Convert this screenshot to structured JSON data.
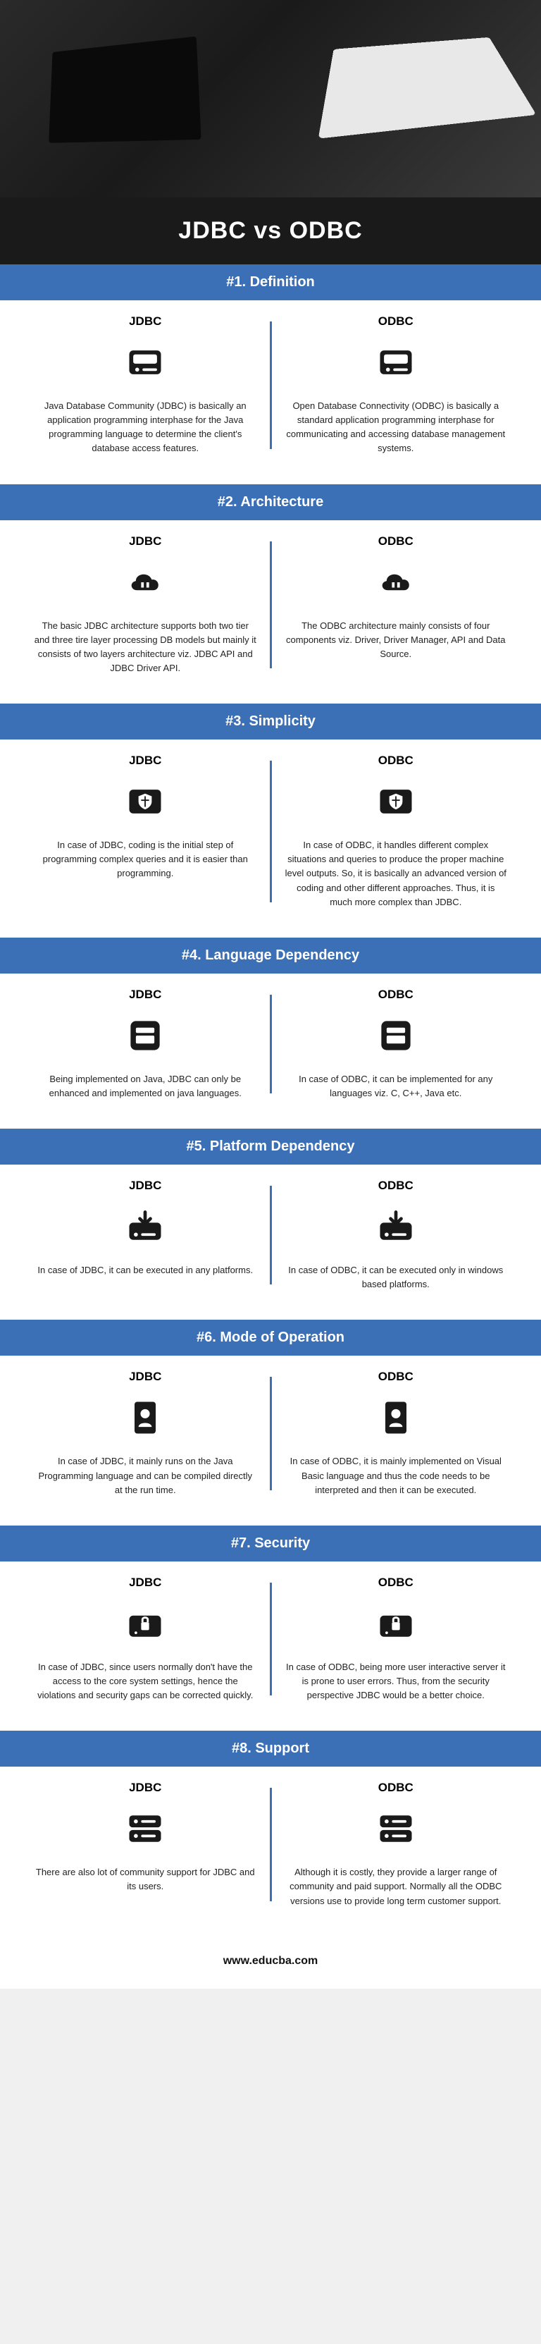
{
  "title": "JDBC vs ODBC",
  "footer": "www.educba.com",
  "colors": {
    "header_bg": "#3b6fb6",
    "title_bg": "#1a1a1a",
    "divider": "#3b6fb6",
    "text": "#222222"
  },
  "column_labels": {
    "left": "JDBC",
    "right": "ODBC"
  },
  "sections": [
    {
      "header": "#1. Definition",
      "left_icon": "drive-icon",
      "right_icon": "drive-icon",
      "left": "Java Database Community (JDBC) is basically an application programming interphase for the Java programming language to determine the client's database access features.",
      "right": "Open Database Connectivity (ODBC) is basically a standard application programming interphase for communicating and accessing database management systems."
    },
    {
      "header": "#2. Architecture",
      "left_icon": "cloud-icon",
      "right_icon": "cloud-icon",
      "left": "The basic JDBC architecture supports both two tier and three tire layer processing DB models but mainly it consists of two layers architecture viz. JDBC API and JDBC Driver API.",
      "right": "The ODBC architecture mainly consists of four components viz. Driver, Driver Manager, API and Data Source."
    },
    {
      "header": "#3. Simplicity",
      "left_icon": "shield-drive-icon",
      "right_icon": "shield-drive-icon",
      "left": "In case of JDBC, coding is the initial step of programming complex queries and it is easier than programming.",
      "right": "In case of ODBC, it handles different complex situations and queries to produce the proper machine level outputs. So, it is basically an advanced version of coding and other different approaches. Thus, it is much more complex than JDBC."
    },
    {
      "header": "#4. Language Dependency",
      "left_icon": "layers-icon",
      "right_icon": "layers-icon",
      "left": "Being implemented on Java, JDBC can only be enhanced and implemented on java languages.",
      "right": "In case of ODBC, it can be implemented for any languages viz. C, C++, Java etc."
    },
    {
      "header": "#5. Platform Dependency",
      "left_icon": "download-drive-icon",
      "right_icon": "download-drive-icon",
      "left": "In case of JDBC, it can be executed in any platforms.",
      "right": "In case of ODBC, it can be executed only in windows based platforms."
    },
    {
      "header": "#6. Mode of Operation",
      "left_icon": "document-icon",
      "right_icon": "document-icon",
      "left": "In case of JDBC, it mainly runs on the Java Programming language and can be compiled directly at the run time.",
      "right": "In case of ODBC, it is mainly implemented on Visual Basic language and thus the code needs to be interpreted and then it can be executed."
    },
    {
      "header": "#7. Security",
      "left_icon": "lock-drive-icon",
      "right_icon": "lock-drive-icon",
      "left": "In case of JDBC, since users normally don't have the access to the core system settings, hence the violations and security gaps can be corrected quickly.",
      "right": "In case of ODBC, being more user interactive server it is prone to user errors. Thus, from the security perspective JDBC would be a better choice."
    },
    {
      "header": "#8. Support",
      "left_icon": "stack-drive-icon",
      "right_icon": "stack-drive-icon",
      "left": "There are also lot of community support for JDBC and its users.",
      "right": "Although it is costly, they provide a larger range of community and paid support. Normally all the ODBC versions use to provide long term customer support."
    }
  ]
}
